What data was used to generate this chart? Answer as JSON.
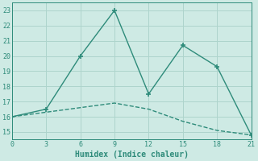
{
  "line1_x": [
    0,
    3,
    6,
    9,
    12,
    15,
    18,
    21
  ],
  "line1_y": [
    16.0,
    16.5,
    20.0,
    23.0,
    17.5,
    20.7,
    19.3,
    14.8
  ],
  "line2_x": [
    0,
    3,
    6,
    9,
    12,
    15,
    18,
    21
  ],
  "line2_y": [
    16.0,
    16.3,
    16.6,
    16.9,
    16.5,
    15.7,
    15.1,
    14.8
  ],
  "line_color": "#2e8b7a",
  "bg_color": "#ceeae4",
  "grid_color": "#aed4cc",
  "xlabel": "Humidex (Indice chaleur)",
  "xlim": [
    0,
    21
  ],
  "ylim": [
    14.5,
    23.5
  ],
  "xticks": [
    0,
    3,
    6,
    9,
    12,
    15,
    18,
    21
  ],
  "yticks": [
    15,
    16,
    17,
    18,
    19,
    20,
    21,
    22,
    23
  ]
}
